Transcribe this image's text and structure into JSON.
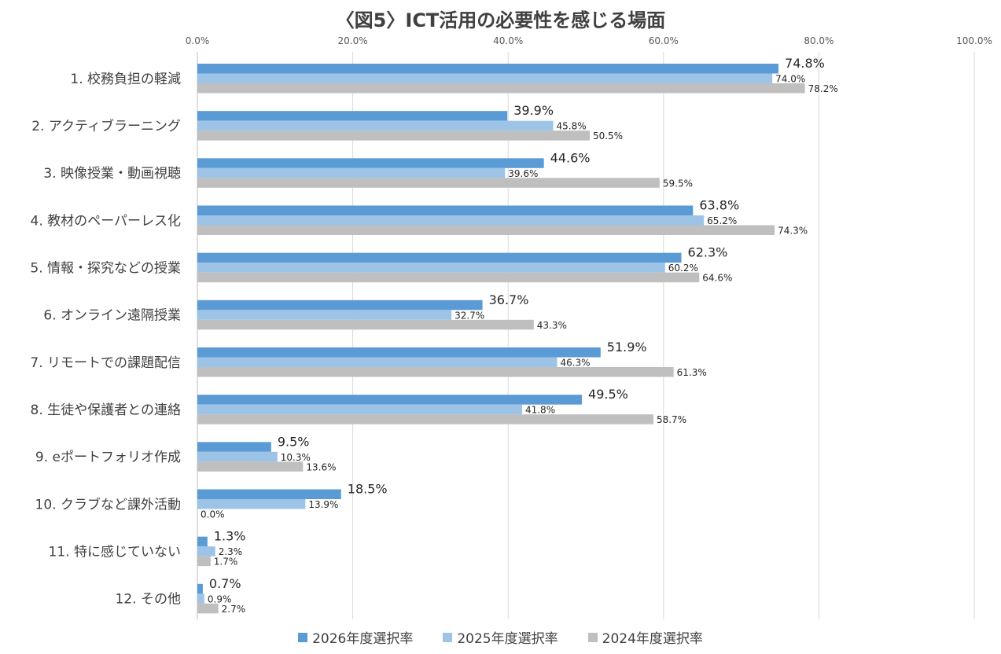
{
  "chart_data": {
    "type": "bar",
    "orientation": "horizontal",
    "title": "〈図5〉ICT活用の必要性を感じる場面",
    "xlabel": "",
    "ylabel": "",
    "xlim": [
      0,
      100
    ],
    "x_ticks": [
      "0.0%",
      "20.0%",
      "40.0%",
      "60.0%",
      "80.0%",
      "100.0%"
    ],
    "grid": true,
    "legend_position": "bottom",
    "categories": [
      "1. 校務負担の軽減",
      "2. アクティブラーニング",
      "3. 映像授業・動画視聴",
      "4. 教材のペーパーレス化",
      "5. 情報・探究などの授業",
      "6. オンライン遠隔授業",
      "7. リモートでの課題配信",
      "8. 生徒や保護者との連絡",
      "9. eポートフォリオ作成",
      "10. クラブなど課外活動",
      "11. 特に感じていない",
      "12. その他"
    ],
    "series": [
      {
        "name": "2026年度選択率",
        "color": "#5b9bd5",
        "values": [
          74.8,
          39.9,
          44.6,
          63.8,
          62.3,
          36.7,
          51.9,
          49.5,
          9.5,
          18.5,
          1.3,
          0.7
        ],
        "labels": [
          "74.8%",
          "39.9%",
          "44.6%",
          "63.8%",
          "62.3%",
          "36.7%",
          "51.9%",
          "49.5%",
          "9.5%",
          "18.5%",
          "1.3%",
          "0.7%"
        ]
      },
      {
        "name": "2025年度選択率",
        "color": "#9dc3e6",
        "values": [
          74.0,
          45.8,
          39.6,
          65.2,
          60.2,
          32.7,
          46.3,
          41.8,
          10.3,
          13.9,
          2.3,
          0.9
        ],
        "labels": [
          "74.0%",
          "45.8%",
          "39.6%",
          "65.2%",
          "60.2%",
          "32.7%",
          "46.3%",
          "41.8%",
          "10.3%",
          "13.9%",
          "2.3%",
          "0.9%"
        ]
      },
      {
        "name": "2024年度選択率",
        "color": "#bfbfbf",
        "values": [
          78.2,
          50.5,
          59.5,
          74.3,
          64.6,
          43.3,
          61.3,
          58.7,
          13.6,
          0.0,
          1.7,
          2.7
        ],
        "labels": [
          "78.2%",
          "50.5%",
          "59.5%",
          "74.3%",
          "64.6%",
          "43.3%",
          "61.3%",
          "58.7%",
          "13.6%",
          "0.0%",
          "1.7%",
          "2.7%"
        ]
      }
    ]
  }
}
